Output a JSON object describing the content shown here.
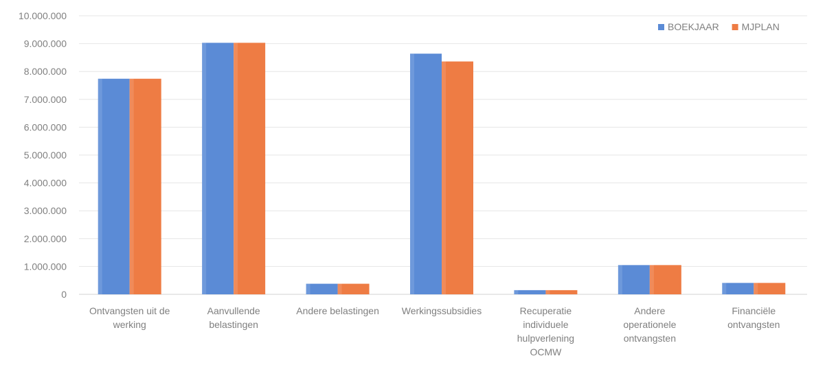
{
  "chart_data": {
    "type": "bar",
    "categories": [
      [
        "Ontvangsten uit de",
        "werking"
      ],
      [
        "Aanvullende",
        "belastingen"
      ],
      [
        "Andere belastingen"
      ],
      [
        "Werkingssubsidies"
      ],
      [
        "Recuperatie",
        "individuele",
        "hulpverlening",
        "OCMW"
      ],
      [
        "Andere",
        "operationele",
        "ontvangsten"
      ],
      [
        "Financiële",
        "ontvangsten"
      ]
    ],
    "series": [
      {
        "name": "BOEKJAAR",
        "color": "#5b8bd6",
        "values": [
          7740000,
          9030000,
          380000,
          8640000,
          150000,
          1050000,
          410000
        ]
      },
      {
        "name": "MJPLAN",
        "color": "#ee7c44",
        "values": [
          7740000,
          9030000,
          380000,
          8360000,
          150000,
          1050000,
          410000
        ]
      }
    ],
    "ylim": [
      0,
      10000000
    ],
    "yticks": [
      "0",
      "1.000.000",
      "2.000.000",
      "3.000.000",
      "4.000.000",
      "5.000.000",
      "6.000.000",
      "7.000.000",
      "8.000.000",
      "9.000.000",
      "10.000.000"
    ],
    "grid": true,
    "legend_position": "top-right",
    "title": "",
    "xlabel": "",
    "ylabel": ""
  }
}
